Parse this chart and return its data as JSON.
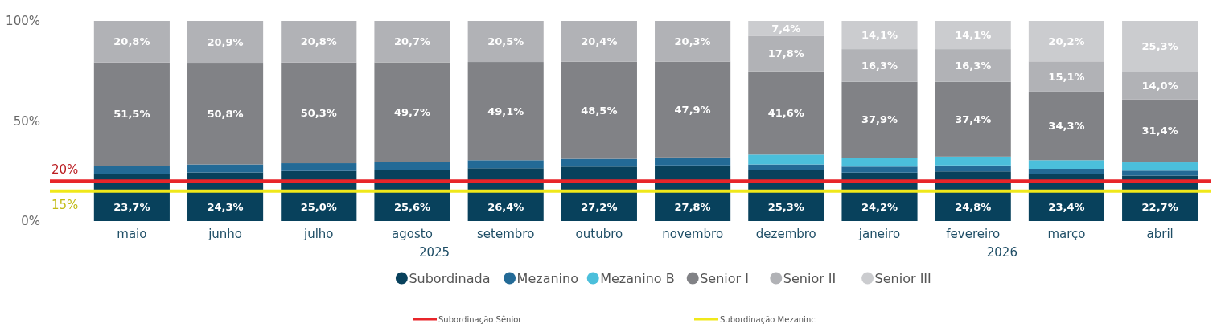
{
  "chart_data": {
    "type": "bar",
    "stacked": true,
    "categories": [
      "maio",
      "junho",
      "julho",
      "agosto",
      "setembro",
      "outubro",
      "novembro",
      "dezembro",
      "janeiro",
      "fevereiro",
      "março",
      "abril"
    ],
    "series": [
      {
        "name": "Subordinada",
        "color": "#08415c",
        "values": [
          23.7,
          24.3,
          25.0,
          25.6,
          26.4,
          27.2,
          27.8,
          25.3,
          24.2,
          24.8,
          23.4,
          22.7
        ],
        "value_labels": [
          "23,7%",
          "24,3%",
          "25,0%",
          "25,6%",
          "26,4%",
          "27,2%",
          "27,8%",
          "25,3%",
          "24,2%",
          "24,8%",
          "23,4%",
          "22,7%"
        ]
      },
      {
        "name": "Mezanino",
        "color": "#236a96",
        "values": [
          4.0,
          4.0,
          3.9,
          4.0,
          4.0,
          3.9,
          4.0,
          3.0,
          3.0,
          3.0,
          2.7,
          2.5
        ]
      },
      {
        "name": "Mezanino B",
        "color": "#4bbfdb",
        "values": [
          null,
          null,
          null,
          null,
          null,
          null,
          null,
          4.9,
          4.5,
          4.4,
          4.3,
          4.1
        ]
      },
      {
        "name": "Senior I",
        "color": "#818286",
        "values": [
          51.5,
          50.8,
          50.3,
          49.7,
          49.1,
          48.5,
          47.9,
          41.6,
          37.9,
          37.4,
          34.3,
          31.4
        ],
        "value_labels": [
          "51,5%",
          "50,8%",
          "50,3%",
          "49,7%",
          "49,1%",
          "48,5%",
          "47,9%",
          "41,6%",
          "37,9%",
          "37,4%",
          "34,3%",
          "31,4%"
        ]
      },
      {
        "name": "Senior II",
        "color": "#b1b2b6",
        "values": [
          20.8,
          20.9,
          20.8,
          20.7,
          20.5,
          20.4,
          20.3,
          17.8,
          16.3,
          16.3,
          15.1,
          14.0
        ],
        "value_labels": [
          "20,8%",
          "20,9%",
          "20,8%",
          "20,7%",
          "20,5%",
          "20,4%",
          "20,3%",
          "17,8%",
          "16,3%",
          "16,3%",
          "15,1%",
          "14,0%"
        ]
      },
      {
        "name": "Senior III",
        "color": "#cbcccf",
        "values": [
          null,
          null,
          null,
          null,
          null,
          null,
          null,
          7.4,
          14.1,
          14.1,
          20.2,
          25.3
        ],
        "value_labels": [
          null,
          null,
          null,
          null,
          null,
          null,
          null,
          "7,4%",
          "14,1%",
          "14,1%",
          "20,2%",
          "25,3%"
        ]
      }
    ],
    "ylim": [
      0,
      100
    ],
    "yticks": [
      {
        "value": 0,
        "label": "0%"
      },
      {
        "value": 50,
        "label": "50%"
      },
      {
        "value": 100,
        "label": "100%"
      }
    ],
    "ref_lines": [
      {
        "axis": "y",
        "value": 20,
        "label": "Subordinação Sênior",
        "color": "#e8252a"
      },
      {
        "axis": "y",
        "value": 15,
        "label": "Subordinação Mezaninc",
        "color": "#f0e81a"
      }
    ],
    "annotations": [
      {
        "text": "20%",
        "y": 20
      },
      {
        "text": "15%",
        "y": 15
      },
      "2025",
      "2026"
    ],
    "legend": "bottom",
    "grid": false
  }
}
